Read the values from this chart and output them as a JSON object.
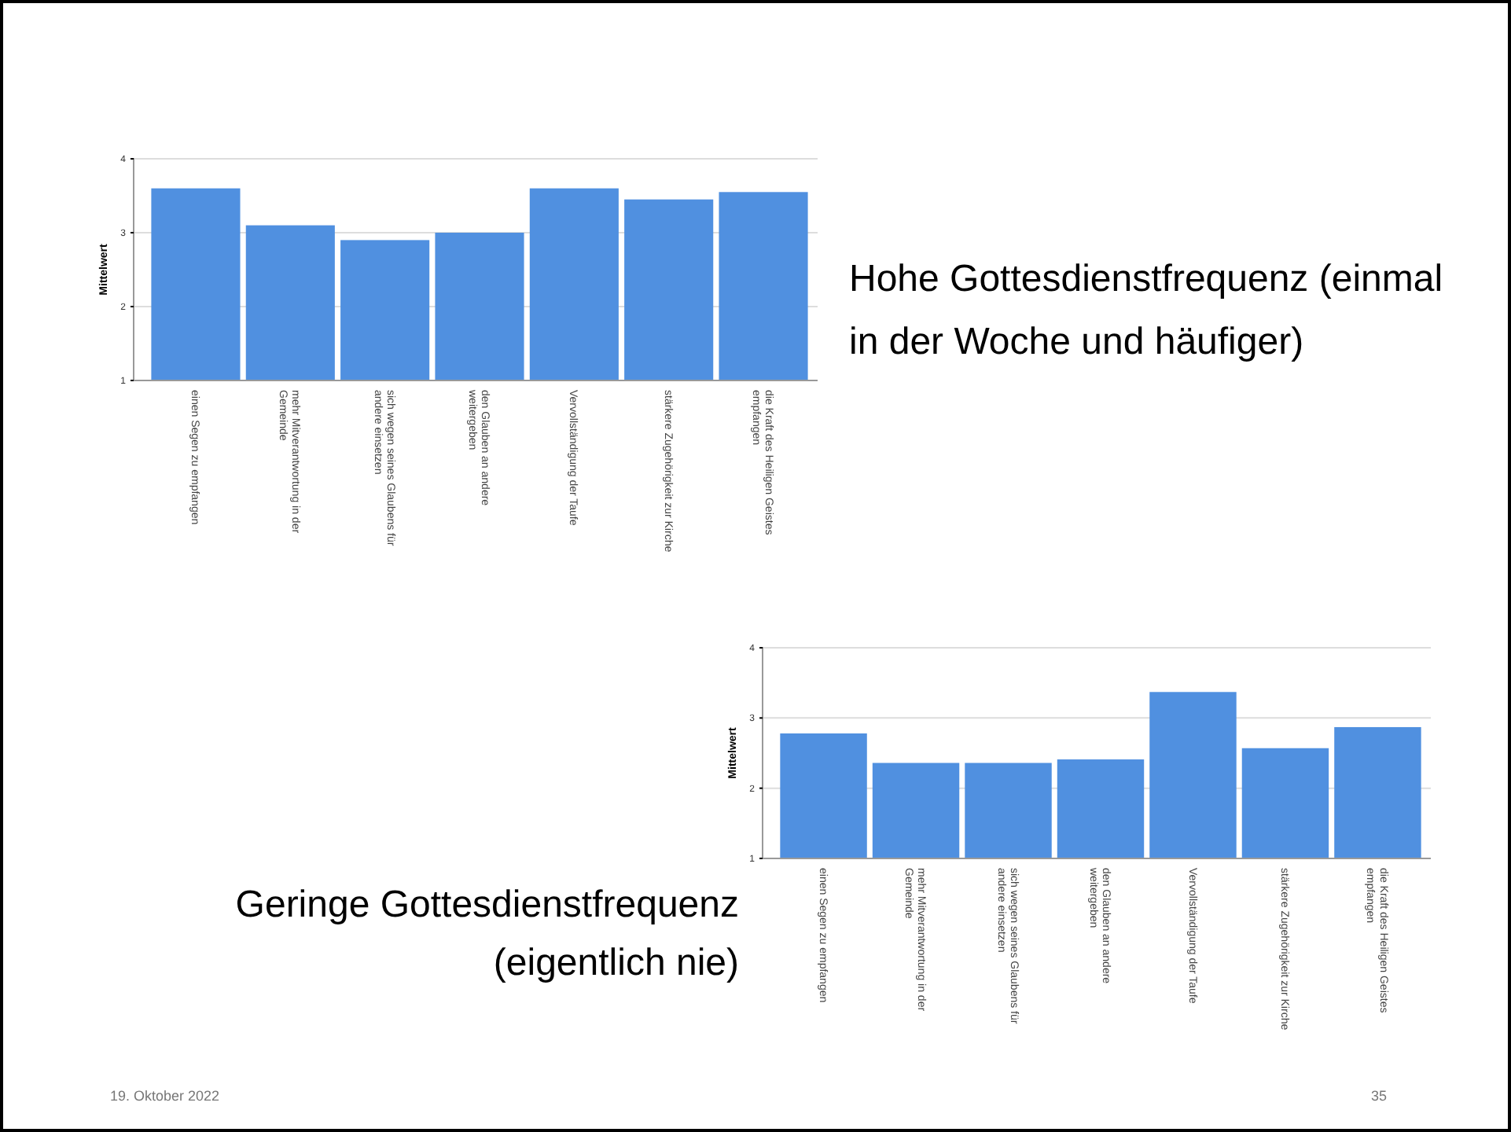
{
  "chart_data": [
    {
      "type": "bar",
      "ylabel": "Mittelwert",
      "categories": [
        "einen Segen zu empfangen",
        "mehr Mitverantwortung in der Gemeinde",
        "sich wegen seines Glaubens für andere einsetzen",
        "den Glauben an andere weitergeben",
        "Vervollständigung der Taufe",
        "stärkere Zugehörigkeit zur Kirche",
        "die Kraft des Heiligen Geistes empfangen"
      ],
      "values": [
        3.6,
        3.1,
        2.9,
        3.0,
        3.6,
        3.45,
        3.55
      ],
      "color": "#5090e0",
      "ylim": [
        1,
        4
      ],
      "yticks": [
        1,
        2,
        3,
        4
      ],
      "grid": "y",
      "annotations": [
        "Hohe Gottesdienstfrequenz (einmal in der Woche und häufiger)"
      ]
    },
    {
      "type": "bar",
      "ylabel": "Mittelwert",
      "categories": [
        "einen Segen zu empfangen",
        "mehr Mitverantwortung in der Gemeinde",
        "sich wegen seines Glaubens für andere einsetzen",
        "den Glauben an andere weitergeben",
        "Vervollständigung der Taufe",
        "stärkere Zugehörigkeit zur Kirche",
        "die Kraft des Heiligen Geistes empfangen"
      ],
      "values": [
        2.78,
        2.36,
        2.36,
        2.41,
        3.37,
        2.57,
        2.87
      ],
      "color": "#5090e0",
      "ylim": [
        1,
        4
      ],
      "yticks": [
        1,
        2,
        3,
        4
      ],
      "grid": "y",
      "annotations": [
        "Geringe Gottesdienstfrequenz (eigentlich nie)",
        "19. Oktober 2022",
        "35"
      ]
    }
  ]
}
